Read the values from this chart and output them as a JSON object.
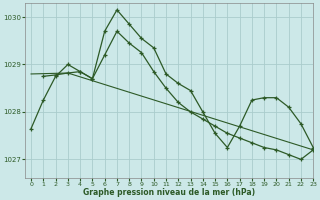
{
  "title": "Graphe pression niveau de la mer (hPa)",
  "background_color": "#cce8e8",
  "grid_color": "#aacccc",
  "line_color": "#2d5a27",
  "xlim": [
    -0.5,
    23
  ],
  "ylim": [
    1026.6,
    1030.3
  ],
  "yticks": [
    1027,
    1028,
    1029,
    1030
  ],
  "xticks": [
    0,
    1,
    2,
    3,
    4,
    5,
    6,
    7,
    8,
    9,
    10,
    11,
    12,
    13,
    14,
    15,
    16,
    17,
    18,
    19,
    20,
    21,
    22,
    23
  ],
  "series1_x": [
    0,
    1,
    2,
    3,
    4,
    5,
    6,
    7,
    8,
    9,
    10,
    11,
    12,
    13,
    14,
    15,
    16,
    17,
    18,
    19,
    20,
    21,
    22,
    23
  ],
  "series1_y": [
    1027.65,
    1028.25,
    1028.75,
    1029.0,
    1028.85,
    1028.7,
    1029.7,
    1030.15,
    1029.85,
    1029.55,
    1029.35,
    1028.8,
    1028.6,
    1028.45,
    1028.0,
    1027.55,
    1027.25,
    1027.7,
    1028.25,
    1028.3,
    1028.3,
    1028.1,
    1027.75,
    1027.25
  ],
  "series2_x": [
    1,
    2,
    3,
    4,
    5,
    6,
    7,
    8,
    9,
    10,
    11,
    12,
    13,
    14,
    15,
    16,
    17,
    18,
    19,
    20,
    21,
    22,
    23
  ],
  "series2_y": [
    1028.75,
    1028.78,
    1028.82,
    1028.85,
    1028.7,
    1029.2,
    1029.7,
    1029.45,
    1029.25,
    1028.85,
    1028.5,
    1028.2,
    1028.0,
    1027.85,
    1027.7,
    1027.55,
    1027.45,
    1027.35,
    1027.25,
    1027.2,
    1027.1,
    1027.0,
    1027.2
  ],
  "series3_x": [
    0,
    3,
    23
  ],
  "series3_y": [
    1028.8,
    1028.82,
    1027.2
  ]
}
